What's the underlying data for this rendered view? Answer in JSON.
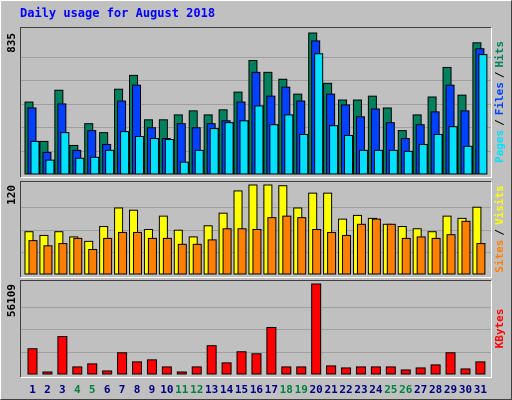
{
  "chart_data": [
    {
      "type": "bar",
      "title": "Daily usage for August 2018",
      "legend_separator": "/",
      "ylim": [
        0,
        835
      ],
      "yticks": [
        835
      ],
      "series": [
        {
          "name": "Hits",
          "color": "#00805c",
          "values": [
            426,
            193,
            496,
            169,
            298,
            245,
            502,
            584,
            321,
            321,
            350,
            374,
            350,
            380,
            485,
            672,
            602,
            561,
            473,
            835,
            537,
            438,
            438,
            461,
            391,
            257,
            350,
            456,
            631,
            467,
            777
          ]
        },
        {
          "name": "Files",
          "color": "#0040ff",
          "values": [
            391,
            128,
            415,
            140,
            257,
            175,
            432,
            526,
            274,
            210,
            298,
            274,
            298,
            315,
            426,
            602,
            461,
            514,
            432,
            788,
            473,
            409,
            339,
            385,
            304,
            210,
            292,
            368,
            526,
            374,
            742
          ]
        },
        {
          "name": "Pages",
          "color": "#00e0ff",
          "values": [
            193,
            82,
            245,
            93,
            99,
            140,
            251,
            222,
            210,
            204,
            70,
            140,
            269,
            304,
            315,
            403,
            292,
            350,
            234,
            712,
            286,
            228,
            140,
            140,
            140,
            134,
            175,
            234,
            280,
            164,
            707
          ]
        }
      ]
    },
    {
      "type": "bar",
      "legend_separator": "/",
      "ylim": [
        0,
        120
      ],
      "yticks": [
        120
      ],
      "series": [
        {
          "name": "Visits",
          "color": "#ffff00",
          "values": [
            57,
            52,
            57,
            50,
            44,
            64,
            89,
            86,
            60,
            78,
            59,
            50,
            65,
            82,
            112,
            120,
            120,
            119,
            89,
            109,
            109,
            74,
            79,
            75,
            67,
            64,
            61,
            57,
            78,
            75,
            90
          ]
        },
        {
          "name": "Sites",
          "color": "#ff8000",
          "values": [
            45,
            38,
            41,
            48,
            33,
            48,
            56,
            56,
            48,
            48,
            40,
            40,
            46,
            61,
            61,
            60,
            76,
            78,
            76,
            60,
            56,
            52,
            67,
            74,
            67,
            48,
            50,
            48,
            53,
            71,
            41
          ]
        }
      ]
    },
    {
      "type": "bar",
      "ylim": [
        0,
        56109
      ],
      "yticks": [
        56109
      ],
      "categories": [
        "1",
        "2",
        "3",
        "4",
        "5",
        "6",
        "7",
        "8",
        "9",
        "10",
        "11",
        "12",
        "13",
        "14",
        "15",
        "16",
        "17",
        "18",
        "19",
        "20",
        "21",
        "22",
        "23",
        "24",
        "25",
        "26",
        "27",
        "28",
        "29",
        "30",
        "31"
      ],
      "category_colors": [
        "#000080",
        "#000080",
        "#000080",
        "#008040",
        "#008040",
        "#000080",
        "#000080",
        "#000080",
        "#000080",
        "#000080",
        "#008040",
        "#008040",
        "#000080",
        "#000080",
        "#000080",
        "#000080",
        "#000080",
        "#008040",
        "#008040",
        "#000080",
        "#000080",
        "#000080",
        "#000080",
        "#000080",
        "#008040",
        "#008040",
        "#000080",
        "#000080",
        "#000080",
        "#000080",
        "#000080"
      ],
      "series": [
        {
          "name": "KBytes",
          "color": "#ff0000",
          "values": [
            15761,
            1261,
            23326,
            4413,
            6304,
            1891,
            13239,
            7565,
            8826,
            4413,
            1261,
            4413,
            17652,
            6935,
            13870,
            12609,
            29000,
            4413,
            4413,
            56109,
            5044,
            3783,
            4413,
            4413,
            4413,
            2522,
            3783,
            5674,
            13239,
            3152,
            7565
          ]
        }
      ]
    }
  ]
}
